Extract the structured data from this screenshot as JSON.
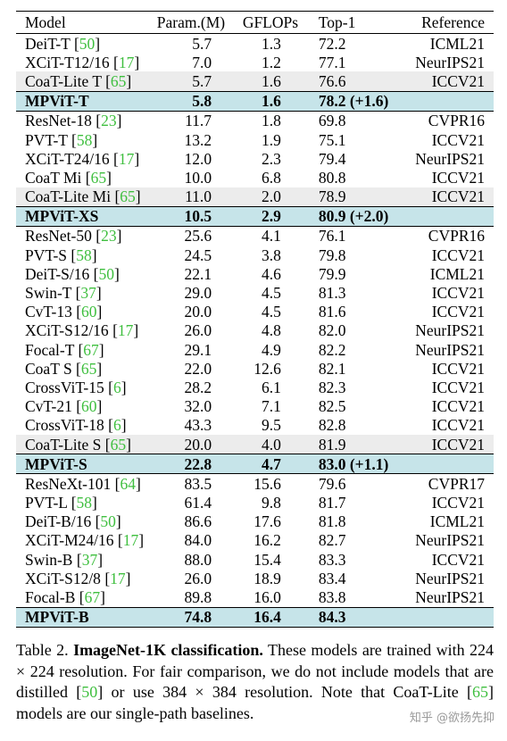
{
  "table": {
    "headers": {
      "model": "Model",
      "param": "Param.(M)",
      "gflops": "GFLOPs",
      "top1": "Top-1",
      "reference": "Reference"
    },
    "rows": [
      {
        "name": "DeiT-T",
        "cite": "50",
        "param": "5.7",
        "gflops": "1.3",
        "top1": "72.2",
        "ref": "ICML21",
        "style": "plain"
      },
      {
        "name": "XCiT-T12/16",
        "cite": "17",
        "param": "7.0",
        "gflops": "1.2",
        "top1": "77.1",
        "ref": "NeurIPS21",
        "style": "plain"
      },
      {
        "name": "CoaT-Lite T",
        "cite": "65",
        "param": "5.7",
        "gflops": "1.6",
        "top1": "76.6",
        "ref": "ICCV21",
        "style": "shade"
      },
      {
        "name": "MPViT-T",
        "cite": "",
        "param": "5.8",
        "gflops": "1.6",
        "top1": "78.2 (+1.6)",
        "ref": "",
        "style": "highlight"
      },
      {
        "name": "ResNet-18",
        "cite": "23",
        "param": "11.7",
        "gflops": "1.8",
        "top1": "69.8",
        "ref": "CVPR16",
        "style": "plain"
      },
      {
        "name": "PVT-T",
        "cite": "58",
        "param": "13.2",
        "gflops": "1.9",
        "top1": "75.1",
        "ref": "ICCV21",
        "style": "plain"
      },
      {
        "name": "XCiT-T24/16",
        "cite": "17",
        "param": "12.0",
        "gflops": "2.3",
        "top1": "79.4",
        "ref": "NeurIPS21",
        "style": "plain"
      },
      {
        "name": "CoaT Mi",
        "cite": "65",
        "param": "10.0",
        "gflops": "6.8",
        "top1": "80.8",
        "ref": "ICCV21",
        "style": "plain"
      },
      {
        "name": "CoaT-Lite Mi",
        "cite": "65",
        "param": "11.0",
        "gflops": "2.0",
        "top1": "78.9",
        "ref": "ICCV21",
        "style": "shade"
      },
      {
        "name": "MPViT-XS",
        "cite": "",
        "param": "10.5",
        "gflops": "2.9",
        "top1": "80.9 (+2.0)",
        "ref": "",
        "style": "highlight"
      },
      {
        "name": "ResNet-50",
        "cite": "23",
        "param": "25.6",
        "gflops": "4.1",
        "top1": "76.1",
        "ref": "CVPR16",
        "style": "plain"
      },
      {
        "name": "PVT-S",
        "cite": "58",
        "param": "24.5",
        "gflops": "3.8",
        "top1": "79.8",
        "ref": "ICCV21",
        "style": "plain"
      },
      {
        "name": "DeiT-S/16",
        "cite": "50",
        "param": "22.1",
        "gflops": "4.6",
        "top1": "79.9",
        "ref": "ICML21",
        "style": "plain"
      },
      {
        "name": "Swin-T",
        "cite": "37",
        "param": "29.0",
        "gflops": "4.5",
        "top1": "81.3",
        "ref": "ICCV21",
        "style": "plain"
      },
      {
        "name": "CvT-13",
        "cite": "60",
        "param": "20.0",
        "gflops": "4.5",
        "top1": "81.6",
        "ref": "ICCV21",
        "style": "plain"
      },
      {
        "name": "XCiT-S12/16",
        "cite": "17",
        "param": "26.0",
        "gflops": "4.8",
        "top1": "82.0",
        "ref": "NeurIPS21",
        "style": "plain"
      },
      {
        "name": "Focal-T",
        "cite": "67",
        "param": "29.1",
        "gflops": "4.9",
        "top1": "82.2",
        "ref": "NeurIPS21",
        "style": "plain"
      },
      {
        "name": "CoaT S",
        "cite": "65",
        "param": "22.0",
        "gflops": "12.6",
        "top1": "82.1",
        "ref": "ICCV21",
        "style": "plain"
      },
      {
        "name": "CrossViT-15",
        "cite": "6",
        "param": "28.2",
        "gflops": "6.1",
        "top1": "82.3",
        "ref": "ICCV21",
        "style": "plain"
      },
      {
        "name": "CvT-21",
        "cite": "60",
        "param": "32.0",
        "gflops": "7.1",
        "top1": "82.5",
        "ref": "ICCV21",
        "style": "plain"
      },
      {
        "name": "CrossViT-18",
        "cite": "6",
        "param": "43.3",
        "gflops": "9.5",
        "top1": "82.8",
        "ref": "ICCV21",
        "style": "plain"
      },
      {
        "name": "CoaT-Lite S",
        "cite": "65",
        "param": "20.0",
        "gflops": "4.0",
        "top1": "81.9",
        "ref": "ICCV21",
        "style": "shade"
      },
      {
        "name": "MPViT-S",
        "cite": "",
        "param": "22.8",
        "gflops": "4.7",
        "top1": "83.0 (+1.1)",
        "ref": "",
        "style": "highlight"
      },
      {
        "name": "ResNeXt-101",
        "cite": "64",
        "param": "83.5",
        "gflops": "15.6",
        "top1": "79.6",
        "ref": "CVPR17",
        "style": "plain"
      },
      {
        "name": "PVT-L",
        "cite": "58",
        "param": "61.4",
        "gflops": "9.8",
        "top1": "81.7",
        "ref": "ICCV21",
        "style": "plain"
      },
      {
        "name": "DeiT-B/16",
        "cite": "50",
        "param": "86.6",
        "gflops": "17.6",
        "top1": "81.8",
        "ref": "ICML21",
        "style": "plain"
      },
      {
        "name": "XCiT-M24/16",
        "cite": "17",
        "param": "84.0",
        "gflops": "16.2",
        "top1": "82.7",
        "ref": "NeurIPS21",
        "style": "plain"
      },
      {
        "name": "Swin-B",
        "cite": "37",
        "param": "88.0",
        "gflops": "15.4",
        "top1": "83.3",
        "ref": "ICCV21",
        "style": "plain"
      },
      {
        "name": "XCiT-S12/8",
        "cite": "17",
        "param": "26.0",
        "gflops": "18.9",
        "top1": "83.4",
        "ref": "NeurIPS21",
        "style": "plain"
      },
      {
        "name": "Focal-B",
        "cite": "67",
        "param": "89.8",
        "gflops": "16.0",
        "top1": "83.8",
        "ref": "NeurIPS21",
        "style": "plain"
      },
      {
        "name": "MPViT-B",
        "cite": "",
        "param": "74.8",
        "gflops": "16.4",
        "top1": "84.3",
        "ref": "",
        "style": "highlight"
      }
    ]
  },
  "caption": {
    "label": "Table 2.",
    "title": "ImageNet-1K classification.",
    "text_1": "These models are trained with 224 × 224 resolution. For fair comparison, we do not include models that are distilled [",
    "cite_1": "50",
    "text_2": "] or use 384 × 384 resolution. Note that CoaT-Lite [",
    "cite_2": "65",
    "text_3": "] models are our single-path baselines."
  },
  "watermark": "知乎 @欲扬先抑"
}
